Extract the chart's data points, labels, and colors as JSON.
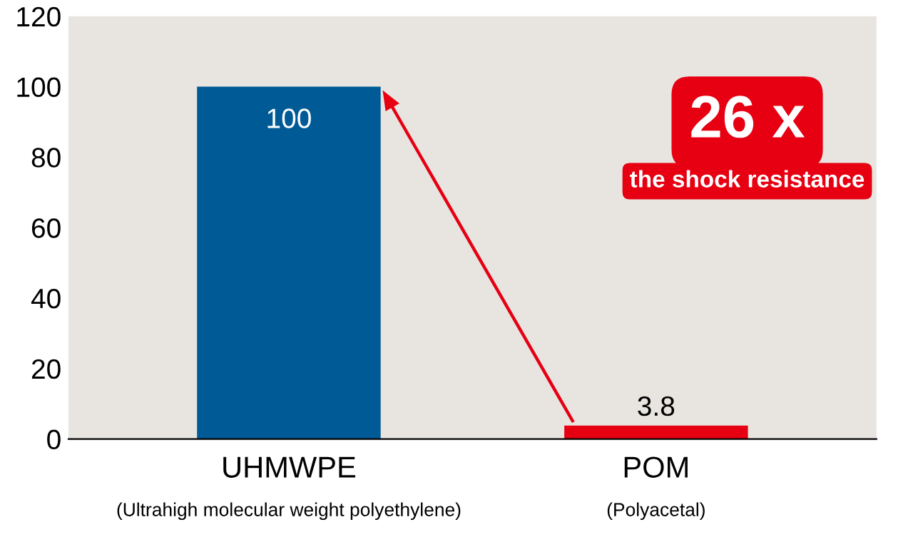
{
  "chart_data": {
    "type": "bar",
    "categories": [
      "UHMWPE\n(Ultrahigh molecular weight polyethylene)",
      "POM\n(Polyacetal)"
    ],
    "values": [
      100,
      3.8
    ],
    "colors": [
      "#005a96",
      "#e60012"
    ],
    "ylim": [
      0,
      120
    ],
    "yticks": [
      0,
      20,
      40,
      60,
      80,
      100,
      120
    ],
    "grid": false,
    "data_labels": true,
    "annotations": [
      "26 x",
      "the shock resistance"
    ]
  }
}
